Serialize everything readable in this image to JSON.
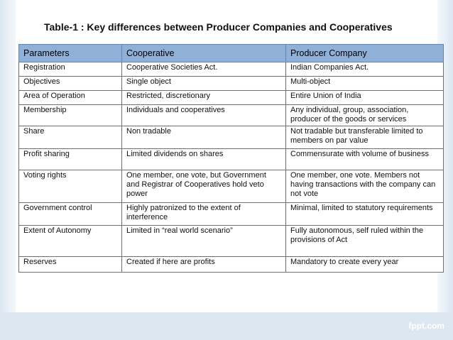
{
  "title": "Table-1 : Key differences between Producer Companies and Cooperatives",
  "table": {
    "headers": [
      "Parameters",
      "Cooperative",
      "Producer Company"
    ],
    "rows": [
      [
        "Registration",
        "Cooperative Societies Act.",
        "Indian Companies Act."
      ],
      [
        "Objectives",
        "Single object",
        "Multi-object"
      ],
      [
        "Area of Operation",
        "Restricted, discretionary",
        "Entire Union of India"
      ],
      [
        "Membership",
        "Individuals and cooperatives",
        "Any individual, group, association, producer of the goods or services"
      ],
      [
        "Share",
        "Non tradable",
        "Not tradable but transferable limited to members on par value"
      ],
      [
        "Profit sharing",
        "Limited dividends on shares",
        "Commensurate with volume of business"
      ],
      [
        "Voting rights",
        "One member, one vote, but Government and Registrar of Cooperatives  hold veto power",
        "One member, one vote. Members not having transactions with the company can not vote"
      ],
      [
        "Government control",
        "Highly patronized to the extent of interference",
        "Minimal, limited to statutory requirements"
      ],
      [
        "Extent of Autonomy",
        "Limited in “real world scenario”",
        "Fully autonomous, self ruled within the provisions of Act"
      ],
      [
        "Reserves",
        "Created if here are profits",
        "Mandatory to create every year"
      ]
    ]
  },
  "footer": {
    "brand": "fppt.com"
  },
  "colors": {
    "header_bg": "#8fb1d8",
    "band": "#dde7f1"
  }
}
